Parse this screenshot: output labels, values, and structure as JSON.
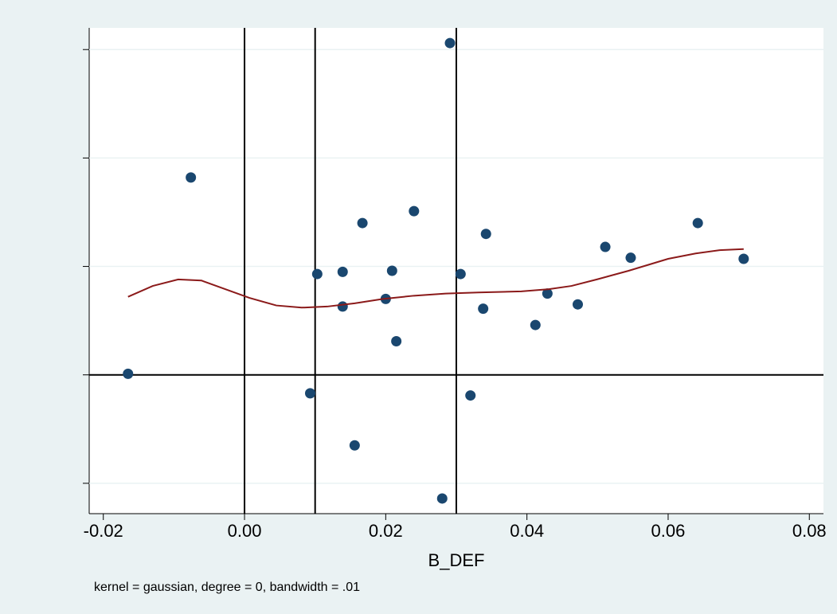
{
  "chart_data": {
    "type": "scatter",
    "x_label": "B_DEF",
    "note": "kernel = gaussian, degree = 0, bandwidth = .01",
    "xlim": [
      -0.022,
      0.082
    ],
    "ylim": [
      -1.28,
      3.2
    ],
    "xticks": [
      {
        "value": -0.02,
        "label": "-0.02"
      },
      {
        "value": 0,
        "label": "0.00"
      },
      {
        "value": 0.02,
        "label": "0.02"
      },
      {
        "value": 0.04,
        "label": "0.04"
      },
      {
        "value": 0.06,
        "label": "0.06"
      },
      {
        "value": 0.08,
        "label": "0.08"
      }
    ],
    "yticks": [
      -1,
      0,
      1,
      2,
      3
    ],
    "grid": true,
    "xlines": [
      0,
      0.01,
      0.03
    ],
    "ylines": [
      0
    ],
    "points": {
      "color": "#1a476f",
      "x": [
        0.0291,
        -0.0076,
        0.0167,
        0.024,
        0.0342,
        0.0103,
        0.0139,
        0.0209,
        0.0306,
        0.0139,
        0.02,
        0.0338,
        0.0429,
        0.0472,
        0.0412,
        0.0511,
        0.0547,
        0.0642,
        0.0707,
        0.0215,
        -0.0165,
        0.0093,
        0.032,
        0.0156,
        0.028
      ],
      "values": [
        3.06,
        1.82,
        1.4,
        1.51,
        1.3,
        0.93,
        0.95,
        0.96,
        0.93,
        0.63,
        0.7,
        0.61,
        0.75,
        0.65,
        0.46,
        1.18,
        1.08,
        1.4,
        1.07,
        0.31,
        0.01,
        -0.17,
        -0.19,
        -0.65,
        -1.14
      ]
    },
    "curve": {
      "color": "#8b1a1a",
      "x": [
        -0.0165,
        -0.013,
        -0.0094,
        -0.0061,
        -0.0027,
        0.0007,
        0.0045,
        0.0081,
        0.0117,
        0.0156,
        0.0196,
        0.024,
        0.0285,
        0.0331,
        0.0392,
        0.0431,
        0.0463,
        0.0499,
        0.0544,
        0.06,
        0.0639,
        0.0673,
        0.0707
      ],
      "values": [
        0.72,
        0.82,
        0.88,
        0.87,
        0.79,
        0.71,
        0.64,
        0.62,
        0.63,
        0.66,
        0.7,
        0.73,
        0.75,
        0.76,
        0.77,
        0.79,
        0.82,
        0.88,
        0.96,
        1.07,
        1.12,
        1.15,
        1.16
      ]
    }
  }
}
